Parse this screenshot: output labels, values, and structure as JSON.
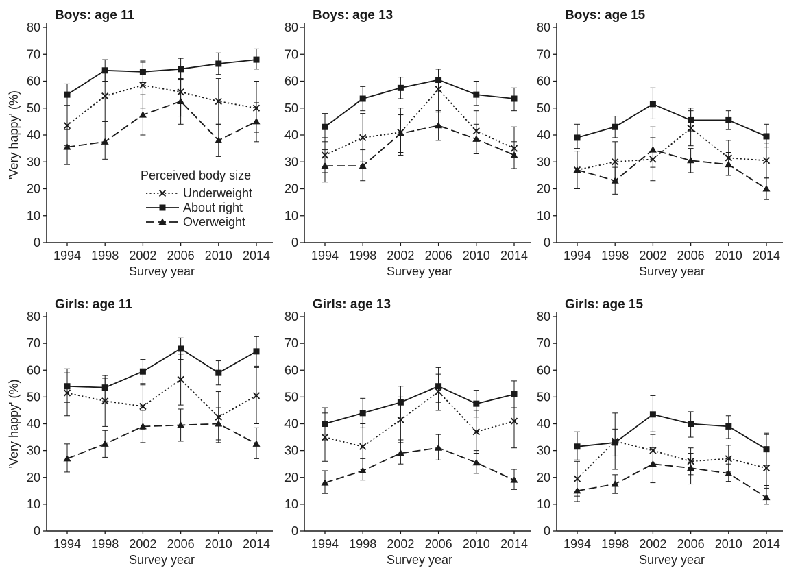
{
  "figure": {
    "legend_title": "Perceived body size",
    "ylabel": "'Very happy' (%)",
    "xlabel": "Survey year"
  },
  "chart_data": [
    {
      "type": "line",
      "title": "Boys: age 11",
      "xlabel": "Survey year",
      "ylabel": "'Very happy' (%)",
      "categories": [
        "1994",
        "1998",
        "2002",
        "2006",
        "2010",
        "2014"
      ],
      "ylim": [
        0,
        80
      ],
      "yticks": [
        0,
        10,
        20,
        30,
        40,
        50,
        60,
        70,
        80
      ],
      "series": [
        {
          "name": "Underweight",
          "values": [
            43.5,
            54.5,
            58.5,
            56,
            52.5,
            50
          ],
          "err_low": [
            36,
            45,
            50,
            47,
            44,
            41
          ],
          "err_high": [
            51,
            64,
            67,
            65,
            61,
            60
          ]
        },
        {
          "name": "About right",
          "values": [
            55,
            64,
            63.5,
            64.5,
            66.5,
            68
          ],
          "err_low": [
            51,
            60,
            59.5,
            60.5,
            62.5,
            64.5
          ],
          "err_high": [
            59,
            68,
            67.5,
            68.5,
            70.5,
            72
          ]
        },
        {
          "name": "Overweight",
          "values": [
            35.5,
            37.5,
            47.5,
            52.5,
            38,
            45
          ],
          "err_low": [
            29,
            31,
            40,
            44,
            32,
            37.5
          ],
          "err_high": [
            42,
            45,
            55,
            61,
            44,
            52
          ]
        }
      ]
    },
    {
      "type": "line",
      "title": "Boys: age 13",
      "xlabel": "Survey year",
      "ylabel": "",
      "categories": [
        "1994",
        "1998",
        "2002",
        "2006",
        "2010",
        "2014"
      ],
      "ylim": [
        0,
        80
      ],
      "yticks": [
        0,
        10,
        20,
        30,
        40,
        50,
        60,
        70,
        80
      ],
      "series": [
        {
          "name": "Underweight",
          "values": [
            32.5,
            39,
            41,
            57,
            41.5,
            35
          ],
          "err_low": [
            26,
            30,
            32.5,
            48.5,
            34,
            27.5
          ],
          "err_high": [
            39,
            48,
            50,
            64.5,
            49,
            43
          ]
        },
        {
          "name": "About right",
          "values": [
            43,
            53.5,
            57.5,
            60.5,
            55,
            53.5
          ],
          "err_low": [
            37.5,
            49,
            53.5,
            56,
            51,
            49
          ],
          "err_high": [
            48,
            58,
            61.5,
            64.5,
            60,
            57.5
          ]
        },
        {
          "name": "Overweight",
          "values": [
            28.5,
            28.5,
            40.5,
            43.5,
            38.5,
            32.5
          ],
          "err_low": [
            22.5,
            23,
            33.5,
            38,
            33,
            27.5
          ],
          "err_high": [
            34.5,
            34.5,
            47.5,
            49,
            44,
            37.5
          ]
        }
      ]
    },
    {
      "type": "line",
      "title": "Boys: age 15",
      "xlabel": "Survey year",
      "ylabel": "",
      "categories": [
        "1994",
        "1998",
        "2002",
        "2006",
        "2010",
        "2014"
      ],
      "ylim": [
        0,
        80
      ],
      "yticks": [
        0,
        10,
        20,
        30,
        40,
        50,
        60,
        70,
        80
      ],
      "series": [
        {
          "name": "Underweight",
          "values": [
            27,
            30,
            31,
            42.5,
            31.5,
            30.5
          ],
          "err_low": [
            20,
            23,
            23,
            36,
            25,
            24
          ],
          "err_high": [
            34,
            37.5,
            39,
            49,
            38,
            37
          ]
        },
        {
          "name": "About right",
          "values": [
            39,
            43,
            51.5,
            45.5,
            45.5,
            39.5
          ],
          "err_low": [
            35,
            39,
            46,
            41.5,
            42,
            35.5
          ],
          "err_high": [
            44,
            47,
            57.5,
            50,
            49,
            44
          ]
        },
        {
          "name": "Overweight",
          "values": [
            27,
            23,
            34.5,
            30.5,
            29,
            20
          ],
          "err_low": [
            20,
            18,
            28,
            26,
            25,
            16
          ],
          "err_high": [
            34,
            28,
            43,
            35,
            33.5,
            24
          ]
        }
      ]
    },
    {
      "type": "line",
      "title": "Girls: age 11",
      "xlabel": "Survey year",
      "ylabel": "'Very happy' (%)",
      "categories": [
        "1994",
        "1998",
        "2002",
        "2006",
        "2010",
        "2014"
      ],
      "ylim": [
        0,
        80
      ],
      "yticks": [
        0,
        10,
        20,
        30,
        40,
        50,
        60,
        70,
        80
      ],
      "series": [
        {
          "name": "Underweight",
          "values": [
            51.5,
            48.5,
            46.5,
            56.5,
            42.5,
            50.5
          ],
          "err_low": [
            43,
            39,
            38,
            47,
            33,
            40
          ],
          "err_high": [
            59,
            57,
            55,
            66,
            52,
            61
          ]
        },
        {
          "name": "About right",
          "values": [
            54,
            53.5,
            59.5,
            68,
            59,
            67
          ],
          "err_low": [
            48,
            48.5,
            54.5,
            64,
            54.5,
            61.5
          ],
          "err_high": [
            60.5,
            58,
            64,
            72,
            63.5,
            72.5
          ]
        },
        {
          "name": "Overweight",
          "values": [
            27,
            32.5,
            39,
            39.5,
            40,
            32.5
          ],
          "err_low": [
            22,
            27.5,
            33,
            33.5,
            34,
            27
          ],
          "err_high": [
            32.5,
            37.5,
            45,
            45.5,
            46,
            38.5
          ]
        }
      ]
    },
    {
      "type": "line",
      "title": "Girls: age 13",
      "xlabel": "Survey year",
      "ylabel": "",
      "categories": [
        "1994",
        "1998",
        "2002",
        "2006",
        "2010",
        "2014"
      ],
      "ylim": [
        0,
        80
      ],
      "yticks": [
        0,
        10,
        20,
        30,
        40,
        50,
        60,
        70,
        80
      ],
      "series": [
        {
          "name": "Underweight",
          "values": [
            35,
            31.5,
            41.5,
            52,
            37,
            41
          ],
          "err_low": [
            26,
            23,
            33,
            45,
            29,
            31
          ],
          "err_high": [
            44,
            40,
            50,
            58.5,
            45,
            51
          ]
        },
        {
          "name": "About right",
          "values": [
            40,
            44,
            48,
            54,
            47.5,
            51
          ],
          "err_low": [
            34,
            38.5,
            42.5,
            48,
            42.5,
            46
          ],
          "err_high": [
            46,
            49.5,
            54,
            61,
            52.5,
            56
          ]
        },
        {
          "name": "Overweight",
          "values": [
            18,
            22.5,
            29,
            31,
            25.5,
            19
          ],
          "err_low": [
            14,
            19,
            25,
            26.5,
            21.5,
            15.5
          ],
          "err_high": [
            22.5,
            27,
            34,
            36,
            30,
            23
          ]
        }
      ]
    },
    {
      "type": "line",
      "title": "Girls: age 15",
      "xlabel": "Survey year",
      "ylabel": "",
      "categories": [
        "1994",
        "1998",
        "2002",
        "2006",
        "2010",
        "2014"
      ],
      "ylim": [
        0,
        80
      ],
      "yticks": [
        0,
        10,
        20,
        30,
        40,
        50,
        60,
        70,
        80
      ],
      "series": [
        {
          "name": "Underweight",
          "values": [
            19.5,
            33.5,
            30,
            26,
            27,
            23.5
          ],
          "err_low": [
            13,
            23,
            24,
            21,
            22,
            16
          ],
          "err_high": [
            26,
            44,
            36,
            31,
            32,
            36.5
          ]
        },
        {
          "name": "About right",
          "values": [
            31.5,
            33,
            43.5,
            40,
            39,
            30.5
          ],
          "err_low": [
            26.5,
            28,
            37,
            35,
            34.5,
            24.5
          ],
          "err_high": [
            37,
            38,
            50.5,
            44.5,
            43,
            36
          ]
        },
        {
          "name": "Overweight",
          "values": [
            15,
            17.5,
            25,
            23.5,
            21.5,
            12.5
          ],
          "err_low": [
            11,
            14,
            18,
            17.5,
            18.5,
            10
          ],
          "err_high": [
            19,
            21,
            31,
            29,
            25,
            17
          ]
        }
      ]
    }
  ]
}
